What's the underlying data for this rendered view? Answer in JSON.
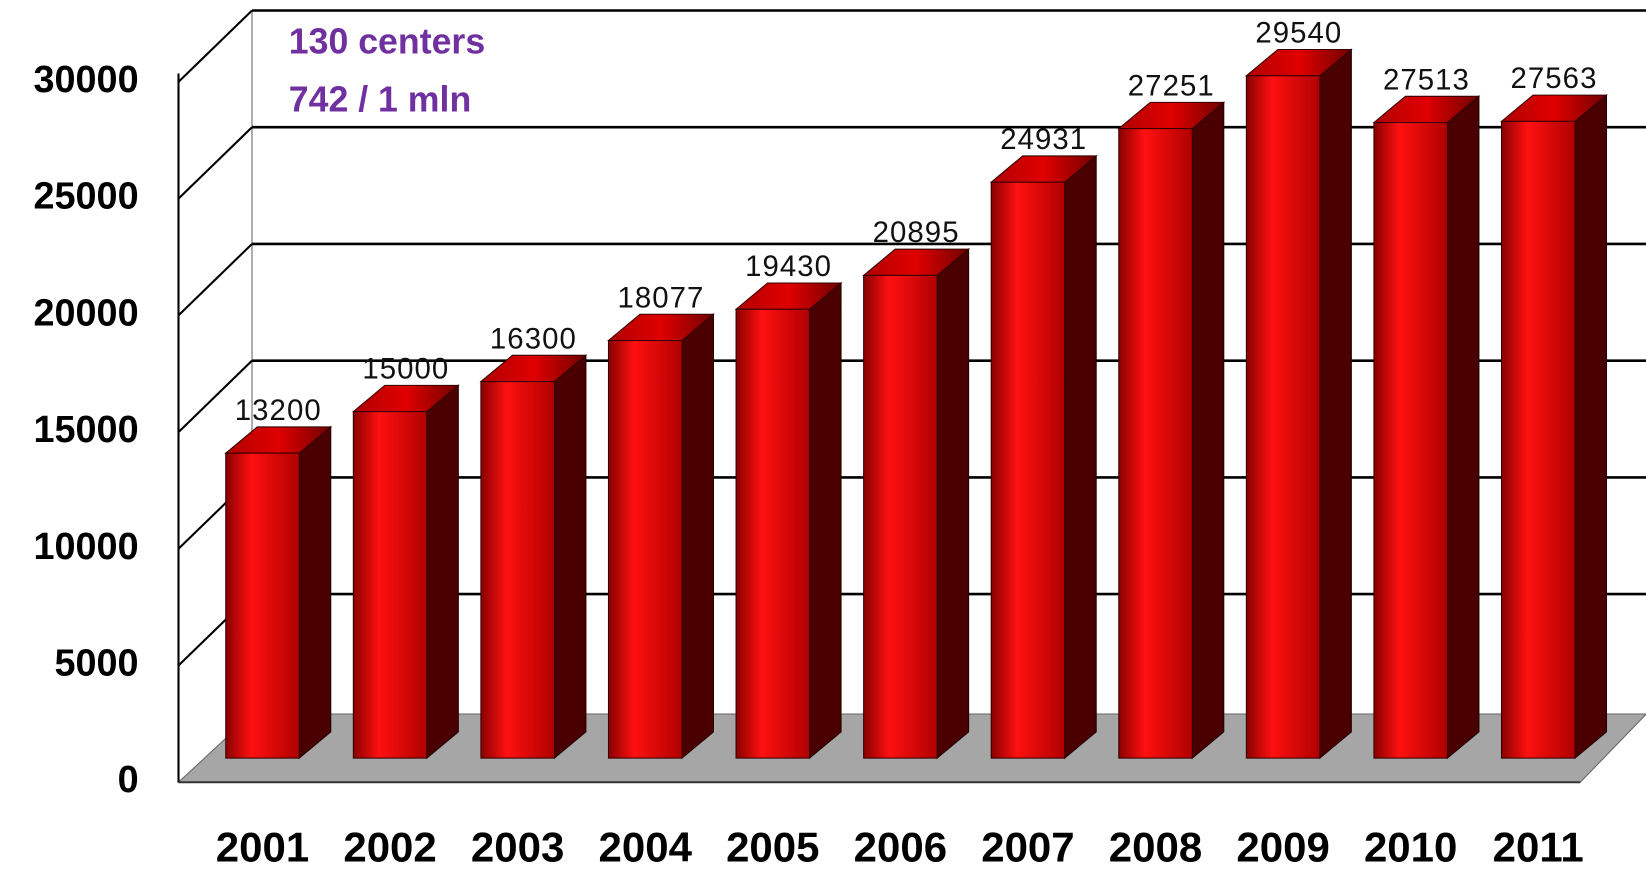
{
  "chart_data": {
    "type": "bar",
    "annotations": [
      "130 centers",
      "742 / 1 mln"
    ],
    "categories": [
      "2001",
      "2002",
      "2003",
      "2004",
      "2005",
      "2006",
      "2007",
      "2008",
      "2009",
      "2010",
      "2011"
    ],
    "values": [
      13200,
      15000,
      16300,
      18077,
      19430,
      20895,
      24931,
      27251,
      29540,
      27513,
      27563
    ],
    "color": "#e00000",
    "ylim": [
      0,
      30000
    ],
    "yticks": [
      0,
      5000,
      10000,
      15000,
      20000,
      25000,
      30000
    ],
    "grid": true
  }
}
